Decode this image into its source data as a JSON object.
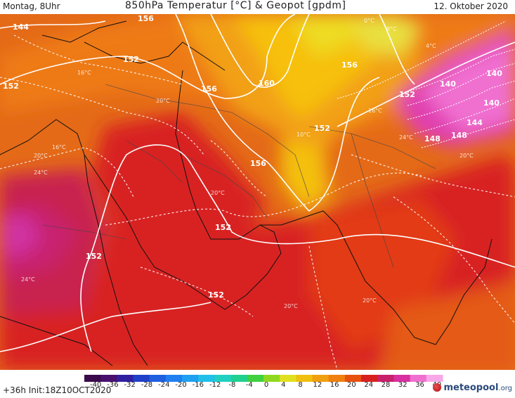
{
  "header": {
    "left": "Montag, 8Uhr",
    "center": "850hPa Temperatur [°C] & Geopot [gpdm]",
    "right": "12. Oktober 2020"
  },
  "footer": {
    "run": "+36h Init:18Z10OCT2020",
    "brand": "meteopool",
    "brand_suffix": ".org"
  },
  "legend": {
    "labels": [
      "-40",
      "-36",
      "-32",
      "-28",
      "-24",
      "-20",
      "-16",
      "-12",
      "-8",
      "-4",
      "0",
      "4",
      "8",
      "12",
      "16",
      "20",
      "24",
      "28",
      "32",
      "36",
      "40"
    ],
    "colors": [
      "#3a0a4a",
      "#4a1070",
      "#3020a0",
      "#2040c8",
      "#2060e0",
      "#2080f0",
      "#20a0f0",
      "#20c0e8",
      "#20d0c0",
      "#20d090",
      "#40d040",
      "#90d820",
      "#e0e020",
      "#f0c010",
      "#f0a010",
      "#f08010",
      "#e85010",
      "#d82020",
      "#c8206a",
      "#d830a0",
      "#f070d0",
      "#f8a8e8"
    ]
  },
  "contours": {
    "geopot": [
      {
        "label": "144"
      },
      {
        "label": "152"
      },
      {
        "label": "152"
      },
      {
        "label": "152"
      },
      {
        "label": "152"
      },
      {
        "label": "152"
      },
      {
        "label": "152"
      },
      {
        "label": "156"
      },
      {
        "label": "156"
      },
      {
        "label": "156"
      },
      {
        "label": "160"
      },
      {
        "label": "156"
      },
      {
        "label": "152"
      },
      {
        "label": "140"
      },
      {
        "label": "140"
      },
      {
        "label": "140"
      },
      {
        "label": "144"
      },
      {
        "label": "148"
      },
      {
        "label": "148"
      }
    ],
    "temperature": [
      {
        "label": "16°C"
      },
      {
        "label": "20°C"
      },
      {
        "label": "24°C"
      },
      {
        "label": "16°C"
      },
      {
        "label": "20°C"
      },
      {
        "label": "24°C"
      },
      {
        "label": "20°C"
      },
      {
        "label": "20°C"
      },
      {
        "label": "20°C"
      },
      {
        "label": "10°C"
      },
      {
        "label": "16°C"
      },
      {
        "label": "8°C"
      },
      {
        "label": "0°C"
      },
      {
        "label": "4°C"
      },
      {
        "label": "20°C"
      },
      {
        "label": "24°C"
      }
    ]
  }
}
